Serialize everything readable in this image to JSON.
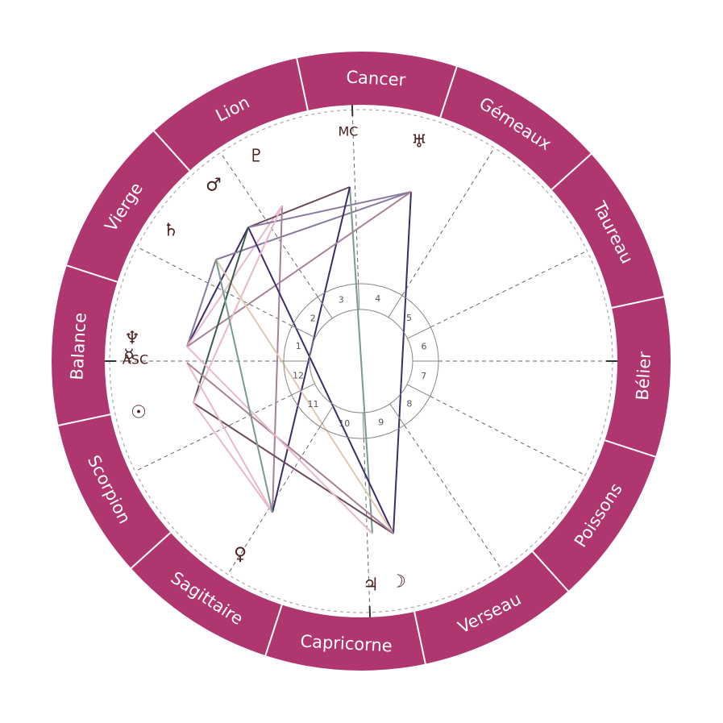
{
  "zodiac_signs": [
    "Bélier",
    "Taureau",
    "Gémeaux",
    "Cancer",
    "Lion",
    "Vierge",
    "Balance",
    "Scorpion",
    "Sagittaire",
    "Capricorne",
    "Verseau",
    "Poissons"
  ],
  "axis_labels": {
    "asc": "ASC",
    "mc": "MC"
  },
  "house_numbers": [
    "1",
    "2",
    "3",
    "4",
    "5",
    "6",
    "7",
    "8",
    "9",
    "10",
    "11",
    "12"
  ],
  "planets": [
    {
      "name": "sun",
      "symbol": "☉"
    },
    {
      "name": "moon",
      "symbol": "☽"
    },
    {
      "name": "mercury",
      "symbol": "☿"
    },
    {
      "name": "venus",
      "symbol": "♀"
    },
    {
      "name": "mars",
      "symbol": "♂"
    },
    {
      "name": "jupiter",
      "symbol": "♃"
    },
    {
      "name": "saturn",
      "symbol": "♄"
    },
    {
      "name": "uranus",
      "symbol": "♅"
    },
    {
      "name": "neptune",
      "symbol": "♆"
    },
    {
      "name": "pluto",
      "symbol": "♇"
    }
  ],
  "colors": {
    "zodiac_ring": "#b03670",
    "zodiac_text": "#ffffff",
    "glyph": "#4a2020",
    "aspect_palette": [
      "#3d2b6b",
      "#e8b8cc",
      "#8a7a9e",
      "#a88098",
      "#6b4a5a",
      "#7a9a90",
      "#3d5a4a",
      "#e0c8b0"
    ]
  }
}
